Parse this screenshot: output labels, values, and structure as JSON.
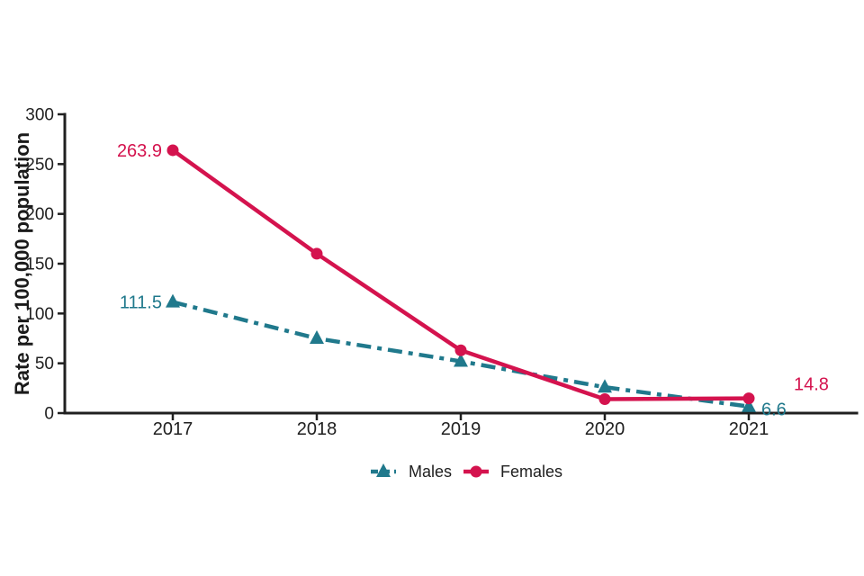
{
  "chart_data": {
    "type": "line",
    "title": "",
    "xlabel": "",
    "ylabel": "Rate per 100,000 population",
    "categories": [
      "2017",
      "2018",
      "2019",
      "2020",
      "2021"
    ],
    "ylim": [
      0,
      300
    ],
    "yticks": [
      0,
      50,
      100,
      150,
      200,
      250,
      300
    ],
    "grid": false,
    "legend_position": "bottom",
    "axis_color": "#202020",
    "text_color": "#202020",
    "series": [
      {
        "name": "Males",
        "color": "#20798c",
        "line_style": "dashed",
        "marker": "triangle",
        "values": [
          111.5,
          75,
          52,
          26,
          6.6
        ]
      },
      {
        "name": "Females",
        "color": "#d4134e",
        "line_style": "solid",
        "marker": "circle",
        "values": [
          263.9,
          160,
          63,
          14,
          14.8
        ]
      }
    ],
    "annotations": [
      {
        "text": "263.9",
        "series": "Females",
        "point_index": 0,
        "placement": "left"
      },
      {
        "text": "111.5",
        "series": "Males",
        "point_index": 0,
        "placement": "left"
      },
      {
        "text": "14.8",
        "series": "Females",
        "point_index": 4,
        "placement": "right-above"
      },
      {
        "text": "6.6",
        "series": "Males",
        "point_index": 4,
        "placement": "right"
      }
    ]
  },
  "legend": {
    "items": [
      {
        "label": "Males"
      },
      {
        "label": "Females"
      }
    ]
  }
}
